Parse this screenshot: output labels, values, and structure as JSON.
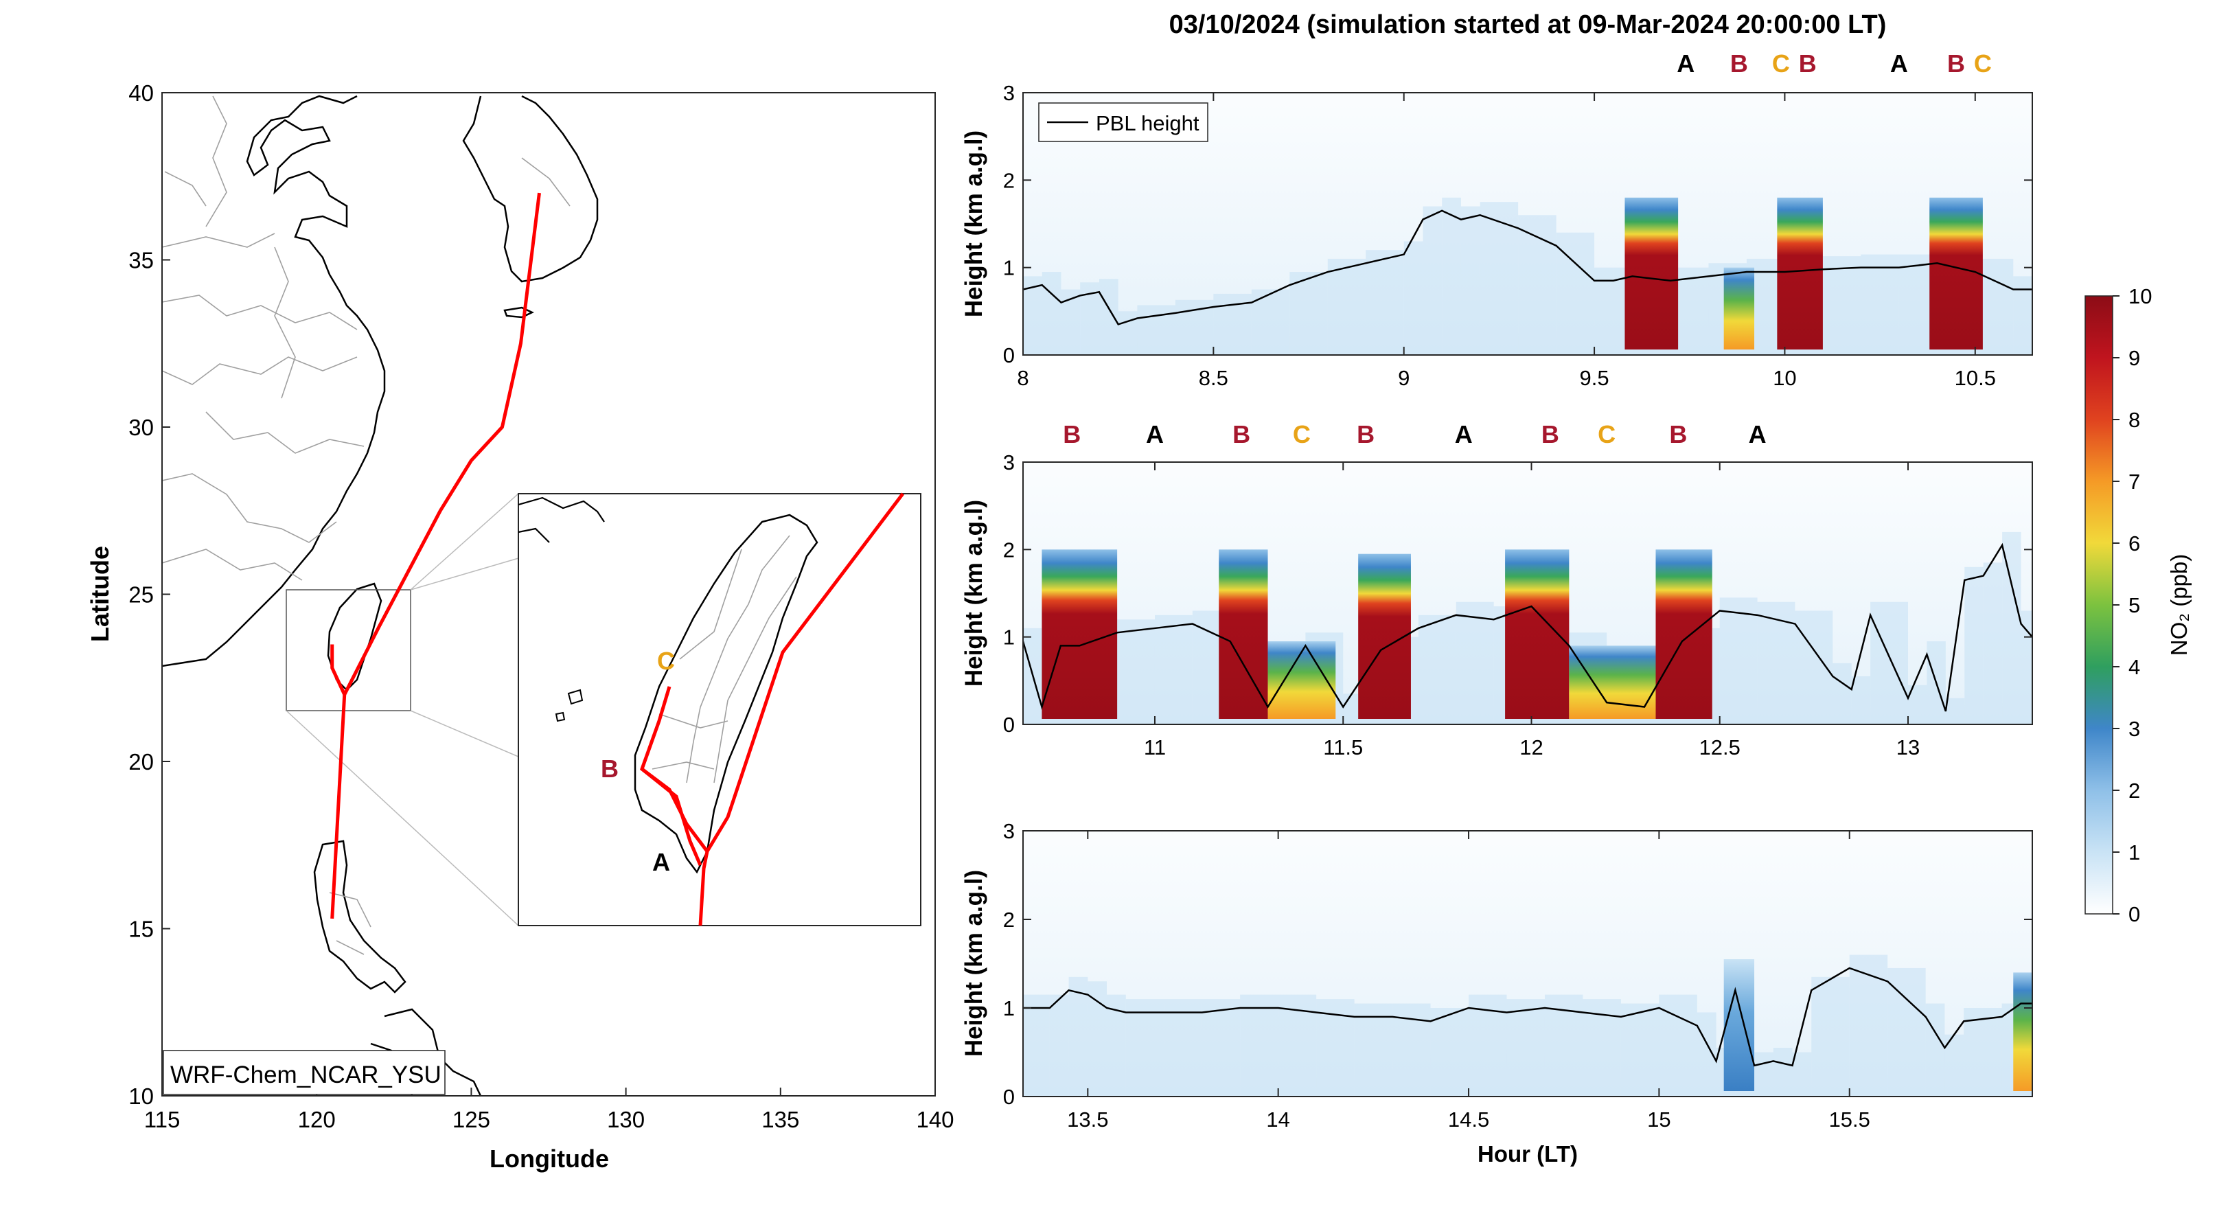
{
  "figure_title": "03/10/2024 (simulation started at 09-Mar-2024 20:00:00 LT)",
  "colors": {
    "track": "#ff0000",
    "pbl_line": "#000000",
    "label_A": "#000000",
    "label_B": "#a6172d",
    "label_C": "#e8a317",
    "map_outline": "#000000",
    "map_borders": "#a0a0a0",
    "inset_connector": "#bbbbbb"
  },
  "map": {
    "xlabel": "Longitude",
    "ylabel": "Latitude",
    "xlim": [
      115,
      140
    ],
    "ylim": [
      10,
      40
    ],
    "xticks": [
      "115",
      "120",
      "125",
      "130",
      "135",
      "140"
    ],
    "yticks": [
      "10",
      "15",
      "20",
      "25",
      "30",
      "35",
      "40"
    ],
    "model_label": "WRF-Chem_NCAR_YSU",
    "track": [
      [
        120.5,
        15.3
      ],
      [
        120.9,
        22.0
      ],
      [
        122.0,
        24.0
      ],
      [
        124.0,
        27.5
      ],
      [
        125.0,
        29.0
      ],
      [
        126.0,
        30.0
      ],
      [
        126.6,
        32.5
      ],
      [
        127.2,
        37.0
      ]
    ],
    "track_spur": [
      [
        120.9,
        22.0
      ],
      [
        120.5,
        22.8
      ],
      [
        120.5,
        23.5
      ]
    ],
    "inset_box": {
      "lon": [
        119.0,
        123.0
      ],
      "lat": [
        21.5,
        26.0
      ]
    },
    "inset_labels": [
      "C",
      "B",
      "A"
    ]
  },
  "chart_data": [
    {
      "type": "heatmap",
      "panel": 1,
      "xlabel": "",
      "ylabel": "Height (km a.g.l)",
      "xlim": [
        8.0,
        10.65
      ],
      "ylim": [
        0,
        3
      ],
      "xticks": [
        "8",
        "8.5",
        "9",
        "9.5",
        "10",
        "10.5"
      ],
      "yticks": [
        "0",
        "1",
        "2",
        "3"
      ],
      "legend": "PBL height",
      "pbl_height_series": {
        "name": "PBL height",
        "x": [
          8.0,
          8.05,
          8.1,
          8.15,
          8.2,
          8.25,
          8.3,
          8.4,
          8.5,
          8.6,
          8.7,
          8.8,
          8.9,
          9.0,
          9.05,
          9.1,
          9.15,
          9.2,
          9.3,
          9.4,
          9.5,
          9.55,
          9.6,
          9.7,
          9.8,
          9.9,
          10.0,
          10.1,
          10.2,
          10.3,
          10.4,
          10.5,
          10.6,
          10.65
        ],
        "y": [
          0.75,
          0.8,
          0.6,
          0.68,
          0.72,
          0.35,
          0.42,
          0.48,
          0.55,
          0.6,
          0.8,
          0.95,
          1.05,
          1.15,
          1.55,
          1.65,
          1.55,
          1.6,
          1.45,
          1.25,
          0.85,
          0.85,
          0.9,
          0.85,
          0.9,
          0.95,
          0.95,
          0.98,
          1.0,
          1.0,
          1.05,
          0.95,
          0.75,
          0.75
        ]
      },
      "no2_high_bands": [
        {
          "x": [
            9.58,
            9.72
          ],
          "peak_ppb": 10,
          "top_km": 0.75
        },
        {
          "x": [
            9.84,
            9.92
          ],
          "peak_ppb": 5,
          "top_km": 0.55
        },
        {
          "x": [
            9.98,
            10.1
          ],
          "peak_ppb": 10,
          "top_km": 0.75
        },
        {
          "x": [
            10.38,
            10.52
          ],
          "peak_ppb": 10,
          "top_km": 0.75
        }
      ],
      "top_labels": [
        {
          "text": "A",
          "x": 9.74
        },
        {
          "text": "B",
          "x": 9.88
        },
        {
          "text": "C",
          "x": 9.99
        },
        {
          "text": "B",
          "x": 10.06
        },
        {
          "text": "A",
          "x": 10.3
        },
        {
          "text": "B",
          "x": 10.45
        },
        {
          "text": "C",
          "x": 10.52
        }
      ]
    },
    {
      "type": "heatmap",
      "panel": 2,
      "xlabel": "",
      "ylabel": "Height (km a.g.l)",
      "xlim": [
        10.65,
        13.33
      ],
      "ylim": [
        0,
        3
      ],
      "xticks": [
        "11",
        "11.5",
        "12",
        "12.5",
        "13"
      ],
      "yticks": [
        "0",
        "1",
        "2",
        "3"
      ],
      "pbl_height_series": {
        "name": "PBL height",
        "x": [
          10.65,
          10.7,
          10.75,
          10.8,
          10.9,
          11.0,
          11.1,
          11.2,
          11.3,
          11.4,
          11.5,
          11.6,
          11.7,
          11.8,
          11.9,
          12.0,
          12.1,
          12.2,
          12.3,
          12.4,
          12.5,
          12.6,
          12.7,
          12.8,
          12.85,
          12.9,
          13.0,
          13.05,
          13.1,
          13.15,
          13.2,
          13.25,
          13.3,
          13.33
        ],
        "y": [
          0.95,
          0.2,
          0.9,
          0.9,
          1.05,
          1.1,
          1.15,
          0.95,
          0.2,
          0.9,
          0.2,
          0.85,
          1.1,
          1.25,
          1.2,
          1.35,
          0.9,
          0.25,
          0.2,
          0.95,
          1.3,
          1.25,
          1.15,
          0.55,
          0.4,
          1.25,
          0.3,
          0.8,
          0.15,
          1.65,
          1.7,
          2.05,
          1.15,
          1.0
        ]
      },
      "no2_high_bands": [
        {
          "x": [
            10.7,
            10.9
          ],
          "peak_ppb": 10,
          "top_km": 0.95
        },
        {
          "x": [
            11.17,
            11.3
          ],
          "peak_ppb": 10,
          "top_km": 0.95
        },
        {
          "x": [
            11.3,
            11.48
          ],
          "peak_ppb": 5,
          "top_km": 0.5
        },
        {
          "x": [
            11.54,
            11.68
          ],
          "peak_ppb": 10,
          "top_km": 0.9
        },
        {
          "x": [
            11.93,
            12.1
          ],
          "peak_ppb": 10,
          "top_km": 0.95
        },
        {
          "x": [
            12.1,
            12.33
          ],
          "peak_ppb": 4,
          "top_km": 0.45
        },
        {
          "x": [
            12.33,
            12.48
          ],
          "peak_ppb": 10,
          "top_km": 0.95
        }
      ],
      "top_labels": [
        {
          "text": "B",
          "x": 10.78
        },
        {
          "text": "A",
          "x": 11.0
        },
        {
          "text": "B",
          "x": 11.23
        },
        {
          "text": "C",
          "x": 11.39
        },
        {
          "text": "B",
          "x": 11.56
        },
        {
          "text": "A",
          "x": 11.82
        },
        {
          "text": "B",
          "x": 12.05
        },
        {
          "text": "C",
          "x": 12.2
        },
        {
          "text": "B",
          "x": 12.39
        },
        {
          "text": "A",
          "x": 12.6
        }
      ]
    },
    {
      "type": "heatmap",
      "panel": 3,
      "xlabel": "Hour (LT)",
      "ylabel": "Height (km a.g.l)",
      "xlim": [
        13.33,
        15.98
      ],
      "ylim": [
        0,
        3
      ],
      "xticks": [
        "13.5",
        "14",
        "14.5",
        "15",
        "15.5"
      ],
      "yticks": [
        "0",
        "1",
        "2",
        "3"
      ],
      "pbl_height_series": {
        "name": "PBL height",
        "x": [
          13.33,
          13.4,
          13.45,
          13.5,
          13.55,
          13.6,
          13.7,
          13.8,
          13.9,
          14.0,
          14.1,
          14.2,
          14.3,
          14.4,
          14.5,
          14.6,
          14.7,
          14.8,
          14.9,
          15.0,
          15.1,
          15.15,
          15.2,
          15.25,
          15.3,
          15.35,
          15.4,
          15.5,
          15.6,
          15.7,
          15.75,
          15.8,
          15.9,
          15.95,
          15.98
        ],
        "y": [
          1.0,
          1.0,
          1.2,
          1.15,
          1.0,
          0.95,
          0.95,
          0.95,
          1.0,
          1.0,
          0.95,
          0.9,
          0.9,
          0.85,
          1.0,
          0.95,
          1.0,
          0.95,
          0.9,
          1.0,
          0.8,
          0.4,
          1.2,
          0.35,
          0.4,
          0.35,
          1.2,
          1.45,
          1.3,
          0.9,
          0.55,
          0.85,
          0.9,
          1.05,
          1.05
        ]
      },
      "no2_high_bands": [
        {
          "x": [
            15.17,
            15.25
          ],
          "peak_ppb": 3,
          "top_km": 1.1
        },
        {
          "x": [
            15.93,
            15.98
          ],
          "peak_ppb": 4,
          "top_km": 0.95
        }
      ]
    }
  ],
  "colorbar": {
    "label": "NO₂ (ppb)",
    "range": [
      0,
      10
    ],
    "ticks": [
      "0",
      "1",
      "2",
      "3",
      "4",
      "5",
      "6",
      "7",
      "8",
      "9",
      "10"
    ]
  }
}
